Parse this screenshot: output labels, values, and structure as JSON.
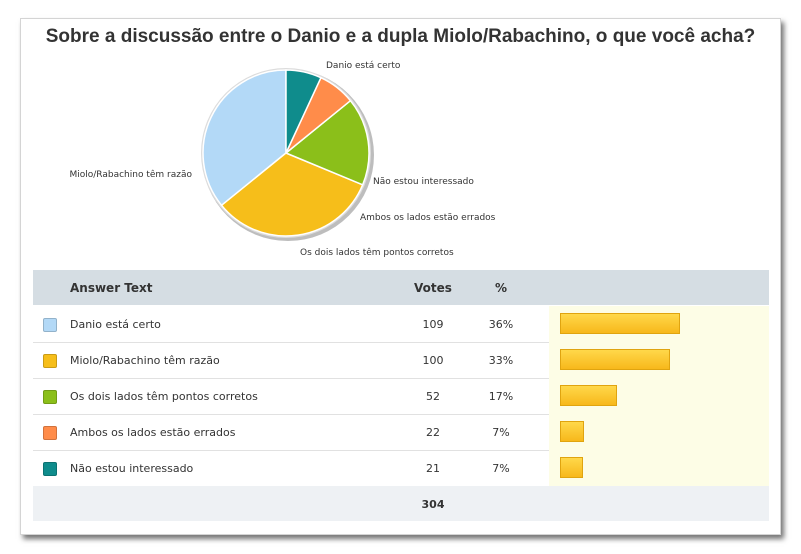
{
  "title": "Sobre a discussão entre o Danio e a dupla Miolo/Rabachino, o que você acha?",
  "table": {
    "headers": {
      "answer": "Answer Text",
      "votes": "Votes",
      "pct": "%"
    },
    "rows": [
      {
        "answer": "Danio está certo",
        "votes": "109",
        "pct": "36%",
        "color": "#b3d9f7"
      },
      {
        "answer": "Miolo/Rabachino têm razão",
        "votes": "100",
        "pct": "33%",
        "color": "#f6be1a"
      },
      {
        "answer": "Os dois lados têm pontos corretos",
        "votes": "52",
        "pct": "17%",
        "color": "#8bbf1a"
      },
      {
        "answer": "Ambos os lados estão errados",
        "votes": "22",
        "pct": "7%",
        "color": "#ff8c4a"
      },
      {
        "answer": "Não estou interessado",
        "votes": "21",
        "pct": "7%",
        "color": "#0f8c8c"
      }
    ],
    "total": "304"
  },
  "chart_data": {
    "type": "pie",
    "title": "Sobre a discussão entre o Danio e a dupla Miolo/Rabachino, o que você acha?",
    "categories": [
      "Danio está certo",
      "Miolo/Rabachino têm razão",
      "Os dois lados têm pontos corretos",
      "Ambos os lados estão errados",
      "Não estou interessado"
    ],
    "values": [
      109,
      100,
      52,
      22,
      21
    ],
    "colors": [
      "#b3d9f7",
      "#f6be1a",
      "#8bbf1a",
      "#ff8c4a",
      "#0f8c8c"
    ]
  }
}
